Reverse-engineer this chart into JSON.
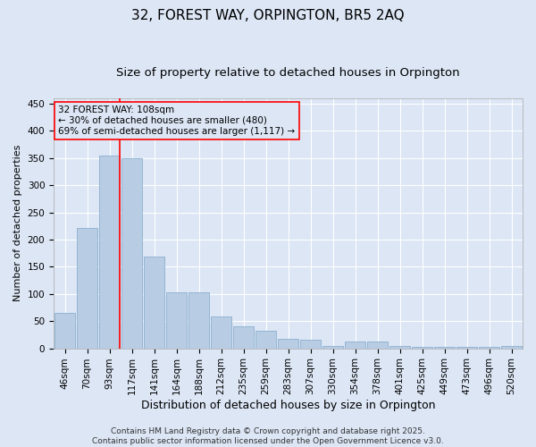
{
  "title": "32, FOREST WAY, ORPINGTON, BR5 2AQ",
  "subtitle": "Size of property relative to detached houses in Orpington",
  "xlabel": "Distribution of detached houses by size in Orpington",
  "ylabel": "Number of detached properties",
  "categories": [
    "46sqm",
    "70sqm",
    "93sqm",
    "117sqm",
    "141sqm",
    "164sqm",
    "188sqm",
    "212sqm",
    "235sqm",
    "259sqm",
    "283sqm",
    "307sqm",
    "330sqm",
    "354sqm",
    "378sqm",
    "401sqm",
    "425sqm",
    "449sqm",
    "473sqm",
    "496sqm",
    "520sqm"
  ],
  "values": [
    65,
    222,
    355,
    350,
    168,
    103,
    103,
    58,
    40,
    32,
    18,
    15,
    5,
    12,
    12,
    5,
    2,
    2,
    2,
    2,
    5
  ],
  "bar_color": "#B8CCE4",
  "bar_edge_color": "#7FA8C8",
  "background_color": "#DCE6F5",
  "grid_color": "#FFFFFF",
  "vline_color": "red",
  "vline_position": 2.45,
  "annotation_text": "32 FOREST WAY: 108sqm\n← 30% of detached houses are smaller (480)\n69% of semi-detached houses are larger (1,117) →",
  "annotation_box_facecolor": "#DCE6F5",
  "annotation_box_edgecolor": "red",
  "ylim": [
    0,
    460
  ],
  "yticks": [
    0,
    50,
    100,
    150,
    200,
    250,
    300,
    350,
    400,
    450
  ],
  "footer": "Contains HM Land Registry data © Crown copyright and database right 2025.\nContains public sector information licensed under the Open Government Licence v3.0.",
  "title_fontsize": 11,
  "subtitle_fontsize": 9.5,
  "xlabel_fontsize": 9,
  "ylabel_fontsize": 8,
  "tick_fontsize": 7.5,
  "annotation_fontsize": 7.5,
  "footer_fontsize": 6.5
}
